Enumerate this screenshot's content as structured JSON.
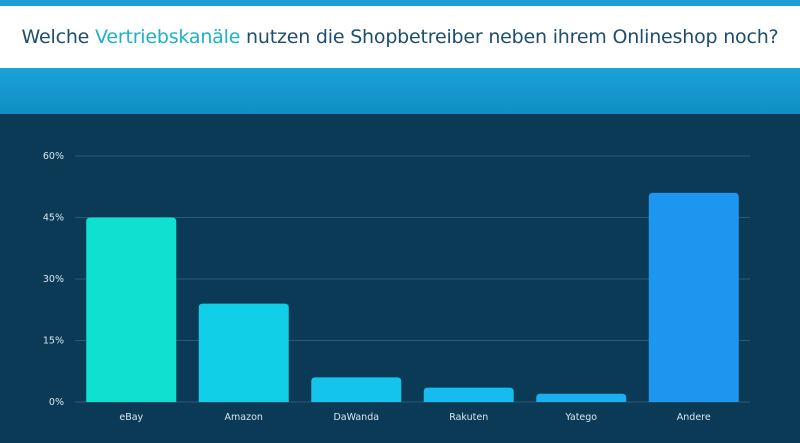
{
  "header": {
    "title_before": "Welche ",
    "title_highlight": "Vertriebskanäle",
    "title_after": " nutzen die Shopbetreiber neben ihrem Onlineshop noch?"
  },
  "colors": {
    "title_text": "#1d4e6e",
    "title_highlight": "#1bb3c9",
    "band": "#1aa3d6",
    "plot_background": "#0b3a57",
    "gridline": "#2c5875"
  },
  "chart_data": {
    "type": "bar",
    "categories": [
      "eBay",
      "Amazon",
      "DaWanda",
      "Rakuten",
      "Yatego",
      "Andere"
    ],
    "values": [
      45,
      24,
      6,
      3.5,
      2,
      51
    ],
    "bar_colors": [
      "#0fe0d0",
      "#11cfe6",
      "#14c4ec",
      "#16bbf0",
      "#19aff0",
      "#1c96ee"
    ],
    "yticks": [
      "0%",
      "15%",
      "30%",
      "45%",
      "60%"
    ],
    "ylim": [
      0,
      60
    ],
    "grid": true
  }
}
